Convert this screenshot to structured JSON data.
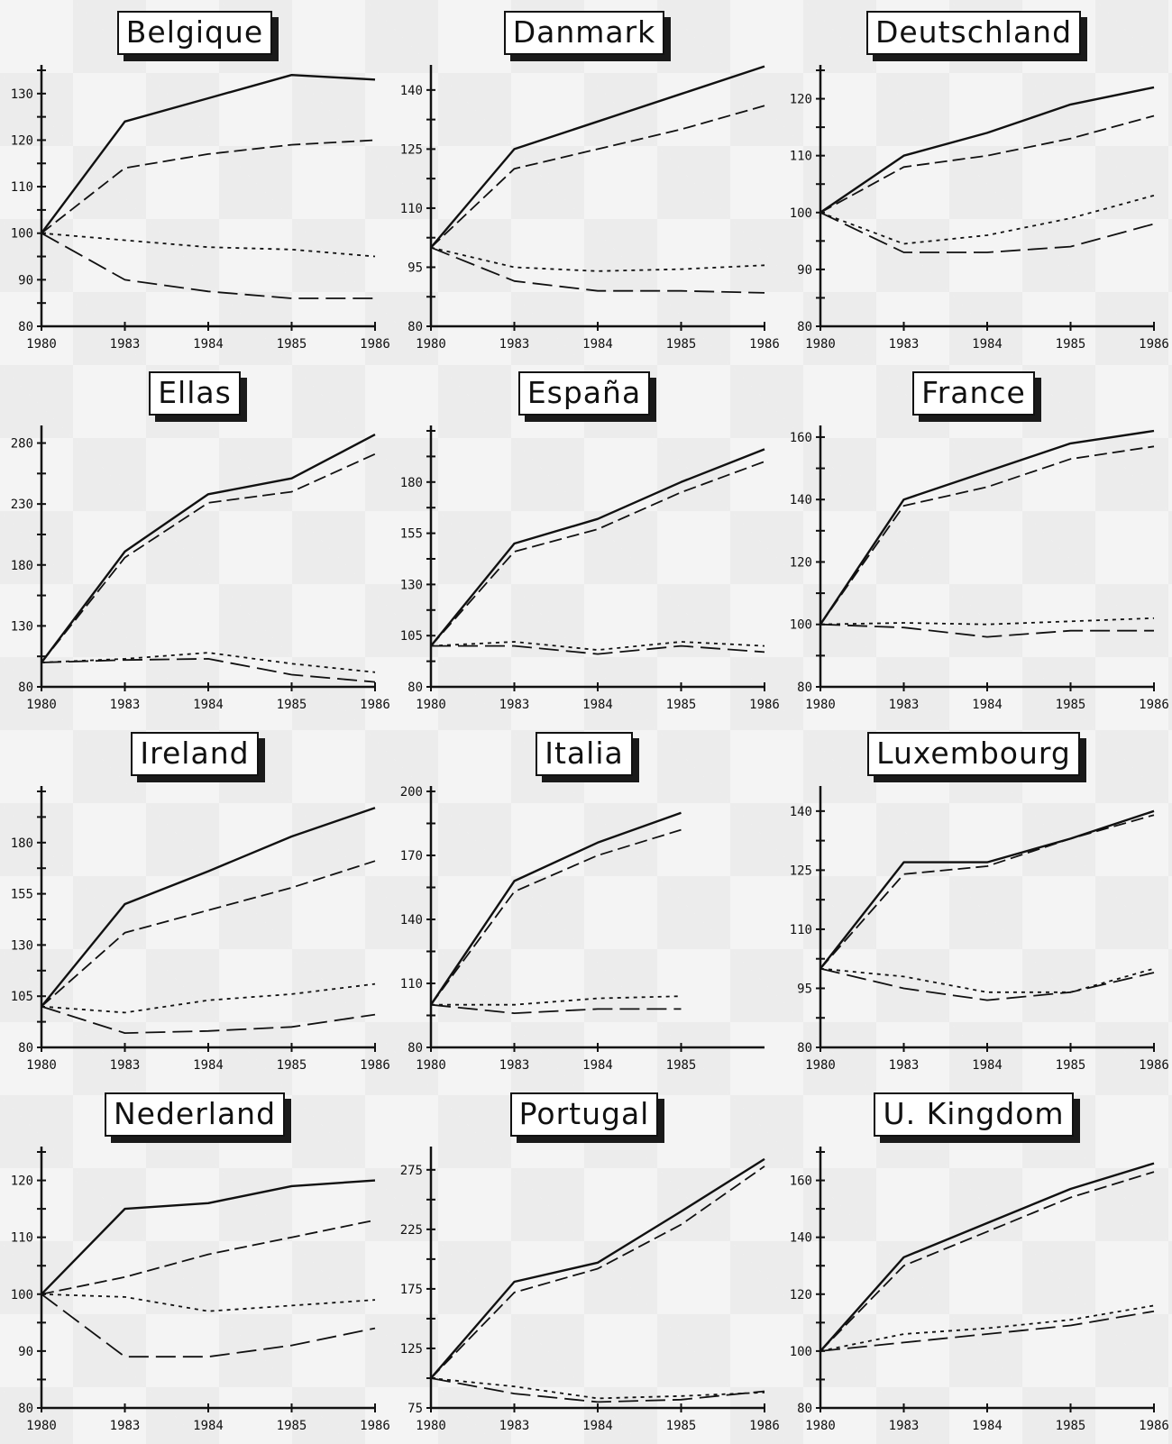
{
  "chart_data": [
    {
      "type": "line",
      "title": "Belgique",
      "categories": [
        "1980",
        "1983",
        "1984",
        "1985",
        "1986"
      ],
      "ylim": [
        80,
        135
      ],
      "yticks": [
        80,
        90,
        100,
        110,
        120,
        130
      ],
      "ytick_labels": [
        "80",
        "90",
        "100",
        "110",
        "120",
        "130"
      ],
      "series": [
        {
          "values": [
            100,
            124,
            129,
            134,
            133
          ],
          "style": "solid"
        },
        {
          "values": [
            100,
            114,
            117,
            119,
            120
          ],
          "style": "dash"
        },
        {
          "values": [
            100,
            98.5,
            97,
            96.5,
            95
          ],
          "style": "dot"
        },
        {
          "values": [
            100,
            90,
            87.5,
            86,
            86
          ],
          "style": "longdash"
        }
      ]
    },
    {
      "type": "line",
      "title": "Danmark",
      "categories": [
        "1980",
        "1983",
        "1984",
        "1985",
        "1986"
      ],
      "ylim": [
        80,
        145
      ],
      "yticks": [
        80,
        95,
        110,
        125,
        140
      ],
      "ytick_labels": [
        "80",
        "95",
        "110",
        "125",
        "140"
      ],
      "series": [
        {
          "values": [
            100,
            125,
            132,
            139,
            146
          ],
          "style": "solid"
        },
        {
          "values": [
            100,
            120,
            125,
            130,
            136
          ],
          "style": "dash"
        },
        {
          "values": [
            100,
            95,
            94,
            94.5,
            95.5
          ],
          "style": "dot"
        },
        {
          "values": [
            100,
            91.5,
            89,
            89,
            88.5
          ],
          "style": "longdash"
        }
      ]
    },
    {
      "type": "line",
      "title": "Deutschland",
      "categories": [
        "1980",
        "1983",
        "1984",
        "1985",
        "1986"
      ],
      "ylim": [
        80,
        125
      ],
      "yticks": [
        80,
        90,
        100,
        110,
        120
      ],
      "ytick_labels": [
        "80",
        "90",
        "100",
        "110",
        "120"
      ],
      "series": [
        {
          "values": [
            100,
            110,
            114,
            119,
            122
          ],
          "style": "solid"
        },
        {
          "values": [
            100,
            108,
            110,
            113,
            117
          ],
          "style": "dash"
        },
        {
          "values": [
            100,
            94.5,
            96,
            99,
            103
          ],
          "style": "dot"
        },
        {
          "values": [
            100,
            93,
            93,
            94,
            98
          ],
          "style": "longdash"
        }
      ]
    },
    {
      "type": "line",
      "title": "Ellas",
      "categories": [
        "1980",
        "1983",
        "1984",
        "1985",
        "1986"
      ],
      "ylim": [
        80,
        290
      ],
      "yticks": [
        80,
        130,
        180,
        230,
        280
      ],
      "ytick_labels": [
        "80",
        "130",
        "180",
        "230",
        "280"
      ],
      "series": [
        {
          "values": [
            100,
            191,
            238,
            251,
            287
          ],
          "style": "solid"
        },
        {
          "values": [
            100,
            186,
            231,
            240,
            271
          ],
          "style": "dash"
        },
        {
          "values": [
            100,
            103,
            108,
            99,
            92
          ],
          "style": "dot"
        },
        {
          "values": [
            100,
            102,
            103,
            90,
            84
          ],
          "style": "longdash"
        }
      ]
    },
    {
      "type": "line",
      "title": "España",
      "categories": [
        "1980",
        "1983",
        "1984",
        "1985",
        "1986"
      ],
      "ylim": [
        80,
        205
      ],
      "yticks": [
        80,
        105,
        130,
        155,
        180
      ],
      "ytick_labels": [
        "80",
        "105",
        "130",
        "155",
        "180"
      ],
      "series": [
        {
          "values": [
            100,
            150,
            162,
            180,
            196
          ],
          "style": "solid"
        },
        {
          "values": [
            100,
            146,
            157,
            175,
            190
          ],
          "style": "dash"
        },
        {
          "values": [
            100,
            102,
            98,
            102,
            100
          ],
          "style": "dot"
        },
        {
          "values": [
            100,
            100,
            96,
            100,
            97
          ],
          "style": "longdash"
        }
      ]
    },
    {
      "type": "line",
      "title": "France",
      "categories": [
        "1980",
        "1983",
        "1984",
        "1985",
        "1986"
      ],
      "ylim": [
        80,
        162
      ],
      "yticks": [
        80,
        100,
        120,
        140,
        160
      ],
      "ytick_labels": [
        "80",
        "100",
        "120",
        "140",
        "160"
      ],
      "series": [
        {
          "values": [
            100,
            140,
            149,
            158,
            162
          ],
          "style": "solid"
        },
        {
          "values": [
            100,
            138,
            144,
            153,
            157
          ],
          "style": "dash"
        },
        {
          "values": [
            100,
            100.5,
            100,
            101,
            102
          ],
          "style": "dot"
        },
        {
          "values": [
            100,
            99,
            96,
            98,
            98
          ],
          "style": "longdash"
        }
      ]
    },
    {
      "type": "line",
      "title": "Ireland",
      "categories": [
        "1980",
        "1983",
        "1984",
        "1985",
        "1986"
      ],
      "ylim": [
        80,
        205
      ],
      "yticks": [
        80,
        105,
        130,
        155,
        180
      ],
      "ytick_labels": [
        "80",
        "105",
        "130",
        "155",
        "180"
      ],
      "series": [
        {
          "values": [
            100,
            150,
            166,
            183,
            197
          ],
          "style": "solid"
        },
        {
          "values": [
            100,
            136,
            147,
            158,
            171
          ],
          "style": "dash"
        },
        {
          "values": [
            100,
            97,
            103,
            106,
            111
          ],
          "style": "dot"
        },
        {
          "values": [
            100,
            87,
            88,
            90,
            96
          ],
          "style": "longdash"
        }
      ]
    },
    {
      "type": "line",
      "title": "Italia",
      "categories": [
        "1980",
        "1983",
        "1984",
        "1985"
      ],
      "ylim": [
        80,
        200
      ],
      "yticks": [
        80,
        110,
        140,
        170,
        200
      ],
      "ytick_labels": [
        "80",
        "110",
        "140",
        "170",
        "200"
      ],
      "series": [
        {
          "values": [
            100,
            158,
            176,
            190
          ],
          "style": "solid"
        },
        {
          "values": [
            100,
            153,
            170,
            182
          ],
          "style": "dash"
        },
        {
          "values": [
            100,
            100,
            103,
            104
          ],
          "style": "dot"
        },
        {
          "values": [
            100,
            96,
            98,
            98
          ],
          "style": "longdash"
        }
      ]
    },
    {
      "type": "line",
      "title": "Luxembourg",
      "categories": [
        "1980",
        "1983",
        "1984",
        "1985",
        "1986"
      ],
      "ylim": [
        80,
        145
      ],
      "yticks": [
        80,
        95,
        110,
        125,
        140
      ],
      "ytick_labels": [
        "80",
        "95",
        "110",
        "125",
        "140"
      ],
      "series": [
        {
          "values": [
            100,
            127,
            127,
            133,
            140
          ],
          "style": "solid"
        },
        {
          "values": [
            100,
            124,
            126,
            133,
            139
          ],
          "style": "dash"
        },
        {
          "values": [
            100,
            98,
            94,
            94,
            100
          ],
          "style": "dot"
        },
        {
          "values": [
            100,
            95,
            92,
            94,
            99
          ],
          "style": "longdash"
        }
      ]
    },
    {
      "type": "line",
      "title": "Nederland",
      "categories": [
        "1980",
        "1983",
        "1984",
        "1985",
        "1986"
      ],
      "ylim": [
        80,
        125
      ],
      "yticks": [
        80,
        90,
        100,
        110,
        120
      ],
      "ytick_labels": [
        "80",
        "90",
        "100",
        "110",
        "120"
      ],
      "series": [
        {
          "values": [
            100,
            115,
            116,
            119,
            120
          ],
          "style": "solid"
        },
        {
          "values": [
            100,
            103,
            107,
            110,
            113
          ],
          "style": "dash"
        },
        {
          "values": [
            100,
            99.5,
            97,
            98,
            99
          ],
          "style": "dot"
        },
        {
          "values": [
            100,
            89,
            89,
            91,
            94
          ],
          "style": "longdash"
        }
      ]
    },
    {
      "type": "line",
      "title": "Portugal",
      "categories": [
        "1980",
        "1983",
        "1984",
        "1985",
        "1986"
      ],
      "ylim": [
        75,
        290
      ],
      "yticks": [
        75,
        125,
        175,
        225,
        275
      ],
      "ytick_labels": [
        "75",
        "125",
        "175",
        "225",
        "275"
      ],
      "series": [
        {
          "values": [
            100,
            181,
            197,
            240,
            284
          ],
          "style": "solid"
        },
        {
          "values": [
            100,
            172,
            192,
            229,
            278
          ],
          "style": "dash"
        },
        {
          "values": [
            100,
            93,
            83,
            85,
            88
          ],
          "style": "dot"
        },
        {
          "values": [
            100,
            87,
            80,
            82,
            89
          ],
          "style": "longdash"
        }
      ]
    },
    {
      "type": "line",
      "title": "U. Kingdom",
      "categories": [
        "1980",
        "1983",
        "1984",
        "1985",
        "1986"
      ],
      "ylim": [
        80,
        170
      ],
      "yticks": [
        80,
        100,
        120,
        140,
        160
      ],
      "ytick_labels": [
        "80",
        "100",
        "120",
        "140",
        "160"
      ],
      "series": [
        {
          "values": [
            100,
            133,
            145,
            157,
            166
          ],
          "style": "solid"
        },
        {
          "values": [
            100,
            130,
            142,
            154,
            163
          ],
          "style": "dash"
        },
        {
          "values": [
            100,
            106,
            108,
            111,
            116
          ],
          "style": "dot"
        },
        {
          "values": [
            100,
            103,
            106,
            109,
            114
          ],
          "style": "longdash"
        }
      ]
    }
  ]
}
